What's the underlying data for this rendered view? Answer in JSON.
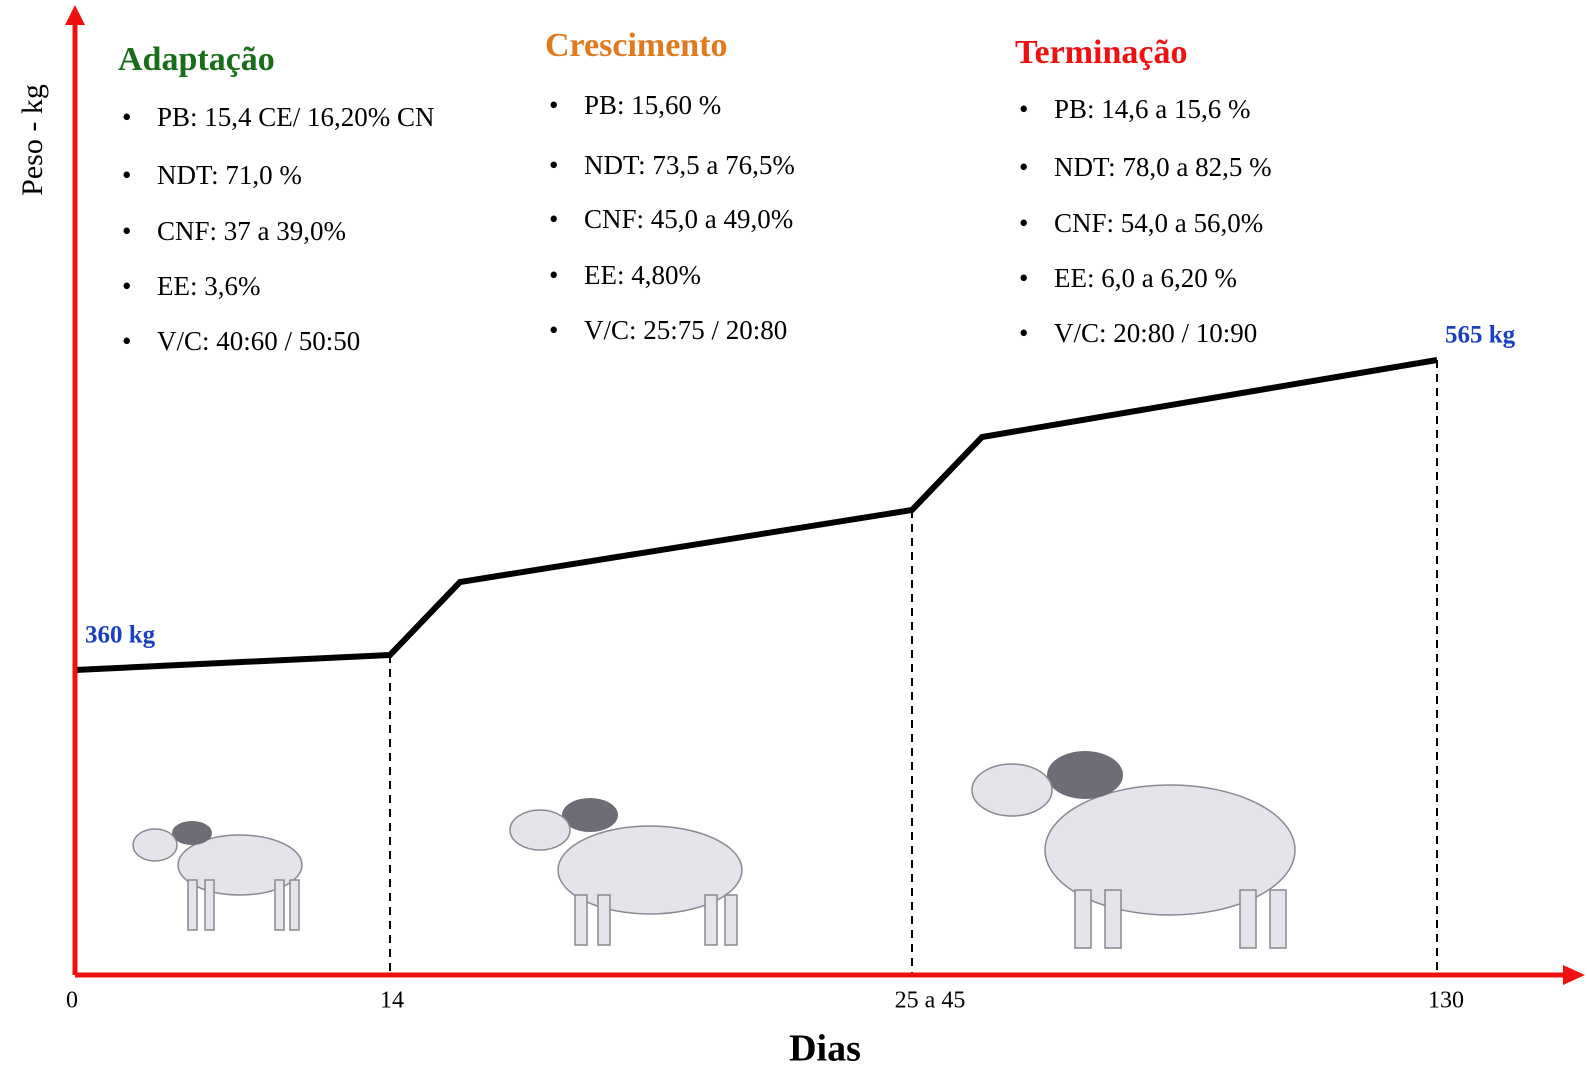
{
  "axes": {
    "y_label": "Peso - kg",
    "x_label": "Dias",
    "x_ticks": [
      "0",
      "14",
      "25 a 45",
      "130"
    ]
  },
  "weights": {
    "start": "360 kg",
    "end": "565 kg"
  },
  "phases": [
    {
      "title": "Adaptação",
      "items": [
        "PB: 15,4 CE/ 16,20% CN",
        "NDT:  71,0 %",
        "CNF: 37 a 39,0%",
        "EE: 3,6%",
        "V/C: 40:60 / 50:50"
      ]
    },
    {
      "title": "Crescimento",
      "items": [
        "PB: 15,60 %",
        "NDT: 73,5 a 76,5%",
        "CNF: 45,0 a 49,0%",
        "EE: 4,80%",
        "V/C: 25:75 / 20:80"
      ]
    },
    {
      "title": "Terminação",
      "items": [
        "PB: 14,6 a 15,6 %",
        "NDT: 78,0 a 82,5 %",
        "CNF: 54,0 a 56,0%",
        "EE: 6,0 a 6,20 %",
        "V/C:  20:80 / 10:90"
      ]
    }
  ]
}
